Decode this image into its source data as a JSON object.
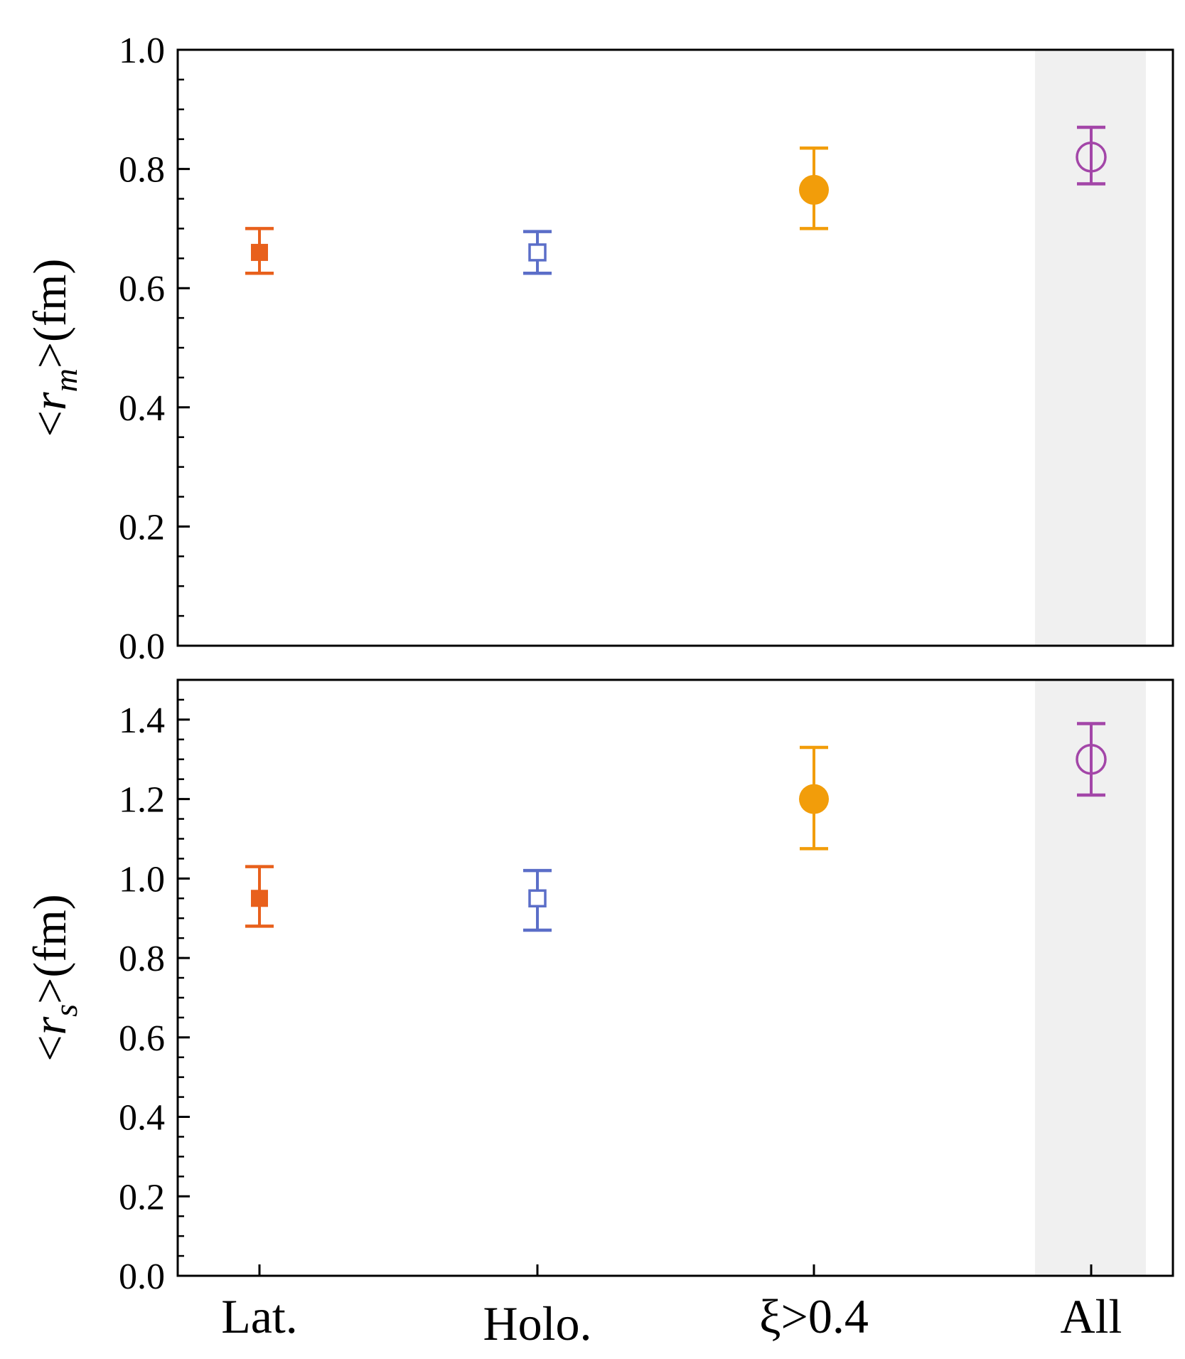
{
  "chart_data": [
    {
      "type": "scatter",
      "panel": "top",
      "ylabel": {
        "pre": "<",
        "var": "r",
        "sub": "m",
        "post": ">(fm)"
      },
      "ylim": [
        0,
        1.0
      ],
      "yticks": [
        "0.0",
        "0.2",
        "0.4",
        "0.6",
        "0.8",
        "1.0"
      ],
      "categories": [
        "Lat.",
        "Holo.",
        "ξ>0.4",
        "All"
      ],
      "highlight_category": "All",
      "points": [
        {
          "category": "Lat.",
          "value": 0.66,
          "err_low": 0.625,
          "err_high": 0.7,
          "marker": "square-filled",
          "color": "#E8601C"
        },
        {
          "category": "Holo.",
          "value": 0.66,
          "err_low": 0.625,
          "err_high": 0.695,
          "marker": "square-open",
          "color": "#5B6EC8"
        },
        {
          "category": "ξ>0.4",
          "value": 0.765,
          "err_low": 0.7,
          "err_high": 0.835,
          "marker": "circle-filled",
          "color": "#F29D0A"
        },
        {
          "category": "All",
          "value": 0.82,
          "err_low": 0.775,
          "err_high": 0.87,
          "marker": "circle-open",
          "color": "#A346A8"
        }
      ]
    },
    {
      "type": "scatter",
      "panel": "bottom",
      "ylabel": {
        "pre": "<",
        "var": "r",
        "sub": "s",
        "post": ">(fm)"
      },
      "ylim": [
        0,
        1.5
      ],
      "yticks": [
        "0.0",
        "0.2",
        "0.4",
        "0.6",
        "0.8",
        "1.0",
        "1.2",
        "1.4"
      ],
      "xticks": [
        "Lat.",
        "Holo.",
        "ξ>0.4",
        "All"
      ],
      "categories": [
        "Lat.",
        "Holo.",
        "ξ>0.4",
        "All"
      ],
      "highlight_category": "All",
      "points": [
        {
          "category": "Lat.",
          "value": 0.95,
          "err_low": 0.88,
          "err_high": 1.03,
          "marker": "square-filled",
          "color": "#E8601C"
        },
        {
          "category": "Holo.",
          "value": 0.95,
          "err_low": 0.87,
          "err_high": 1.02,
          "marker": "square-open",
          "color": "#5B6EC8"
        },
        {
          "category": "ξ>0.4",
          "value": 1.2,
          "err_low": 1.075,
          "err_high": 1.33,
          "marker": "circle-filled",
          "color": "#F29D0A"
        },
        {
          "category": "All",
          "value": 1.3,
          "err_low": 1.21,
          "err_high": 1.39,
          "marker": "circle-open",
          "color": "#A346A8"
        }
      ]
    }
  ],
  "colors": {
    "highlight_band": "#F0F0F0",
    "axis": "#000000"
  }
}
